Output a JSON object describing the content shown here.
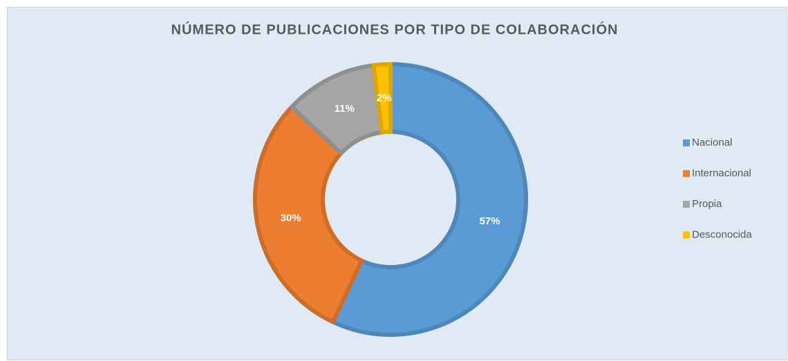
{
  "chart_data": {
    "type": "donut",
    "title": "NÚMERO DE PUBLICACIONES POR TIPO DE COLABORACIÓN",
    "categories": [
      "Nacional",
      "Internacional",
      "Propia",
      "Desconocida"
    ],
    "values": [
      57,
      30,
      11,
      2
    ],
    "value_labels": [
      "57%",
      "30%",
      "11%",
      "2%"
    ],
    "colors": [
      "#5b9bd5",
      "#ed7d31",
      "#a5a5a5",
      "#ffc000"
    ],
    "legend": "right"
  }
}
